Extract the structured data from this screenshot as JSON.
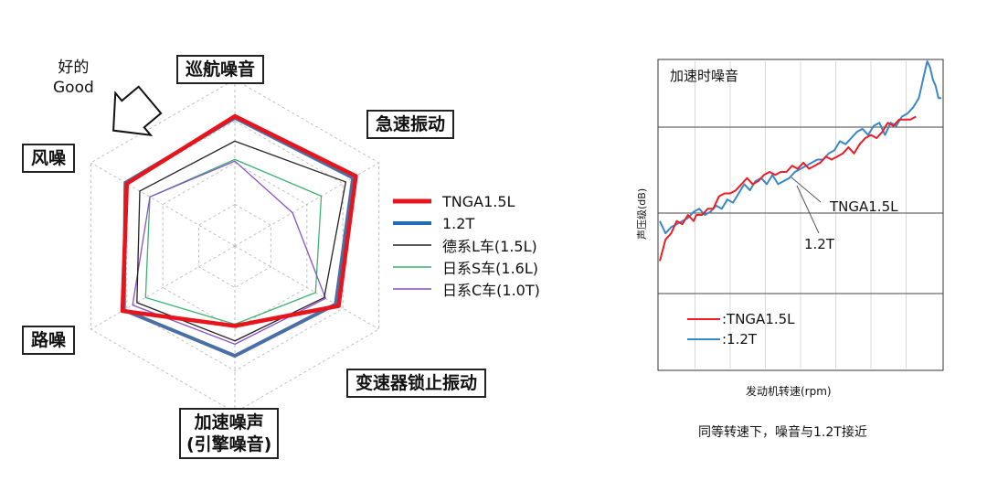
{
  "radar": {
    "chart_data": {
      "type": "radar",
      "axes": [
        "巡航噪音",
        "急速振动",
        "变速器锁止振动",
        "加速噪声\n(引擎噪音)",
        "路噪",
        "风噪"
      ],
      "scale": [
        0,
        1
      ],
      "grid_levels": 4,
      "series": [
        {
          "name": "TNGA1.5L",
          "color": "#e8141c",
          "width": 4.5,
          "values": [
            0.78,
            0.84,
            0.72,
            0.48,
            0.78,
            0.75
          ]
        },
        {
          "name": "1.2T",
          "color": "#4a6fa5",
          "width": 4,
          "values": [
            0.77,
            0.82,
            0.7,
            0.66,
            0.77,
            0.76
          ]
        },
        {
          "name": "德系L车(1.5L)",
          "color": "#222222",
          "width": 1.3,
          "values": [
            0.63,
            0.77,
            0.62,
            0.57,
            0.68,
            0.66
          ]
        },
        {
          "name": "日系S车(1.6L)",
          "color": "#3cb371",
          "width": 1.3,
          "values": [
            0.52,
            0.6,
            0.56,
            0.47,
            0.62,
            0.59
          ]
        },
        {
          "name": "日系C车(1.0T)",
          "color": "#8a4fc8",
          "width": 1.3,
          "values": [
            0.51,
            0.4,
            0.63,
            0.59,
            0.71,
            0.59
          ]
        }
      ],
      "axis_labels": {
        "cruise": "巡航噪音",
        "idle": "急速振动",
        "lockup": "变速器锁止振动",
        "accel_1": "加速噪声",
        "accel_2": "(引擎噪音)",
        "road": "路噪",
        "wind": "风噪"
      },
      "good_1": "好的",
      "good_2": "Good"
    }
  },
  "line": {
    "chart_data": {
      "type": "line",
      "title": "加速时噪音",
      "xlabel": "发动机转速(rpm)",
      "ylabel": "声压级(dB)",
      "xlim": [
        0,
        100
      ],
      "ylim": [
        0,
        100
      ],
      "x_ticks_labeled": false,
      "y_ticks_labeled": false,
      "grid": true,
      "series": [
        {
          "name": ":TNGA1.5L",
          "color": "#ee1c24",
          "x": [
            0,
            2,
            4,
            6,
            8,
            10,
            12,
            13,
            15,
            17,
            19,
            21,
            23,
            25,
            27,
            29,
            31,
            33,
            35,
            37,
            39,
            41,
            43,
            45,
            47,
            49,
            51,
            53,
            55,
            57,
            59,
            61,
            63,
            65,
            67,
            69,
            71,
            73,
            75,
            77,
            79,
            81,
            83,
            85,
            87,
            89,
            91
          ],
          "y": [
            35,
            42,
            44,
            48,
            47,
            50,
            48,
            50,
            50,
            52,
            52,
            56,
            57,
            57,
            58,
            60,
            62,
            60,
            61,
            63,
            64,
            63,
            64,
            64,
            66,
            65,
            67,
            65,
            66,
            67,
            69,
            68,
            69,
            70,
            72,
            70,
            73,
            75,
            76,
            75,
            77,
            80,
            79,
            81,
            81,
            81,
            82
          ]
        },
        {
          "name": ":1.2T",
          "color": "#3a87c8",
          "x": [
            0,
            2,
            4,
            6,
            8,
            10,
            12,
            14,
            16,
            18,
            20,
            22,
            24,
            26,
            28,
            30,
            32,
            34,
            36,
            38,
            40,
            42,
            44,
            46,
            48,
            50,
            52,
            54,
            56,
            58,
            60,
            62,
            64,
            66,
            68,
            70,
            72,
            74,
            76,
            78,
            80,
            82,
            84,
            86,
            88,
            90,
            92,
            94,
            95,
            96,
            97,
            98,
            99,
            100
          ],
          "y": [
            48,
            44,
            46,
            47,
            48,
            49,
            51,
            52,
            50,
            51,
            53,
            52,
            55,
            54,
            57,
            60,
            58,
            61,
            62,
            60,
            63,
            60,
            61,
            62,
            64,
            65,
            66,
            67,
            68,
            68,
            70,
            71,
            74,
            73,
            75,
            77,
            78,
            76,
            79,
            80,
            76,
            80,
            79,
            82,
            83,
            85,
            88,
            96,
            100,
            98,
            94,
            92,
            88,
            88
          ]
        }
      ],
      "annotations": [
        "TNGA1.5L",
        "1.2T"
      ]
    },
    "caption": "同等转速下，噪音与1.2T接近"
  }
}
